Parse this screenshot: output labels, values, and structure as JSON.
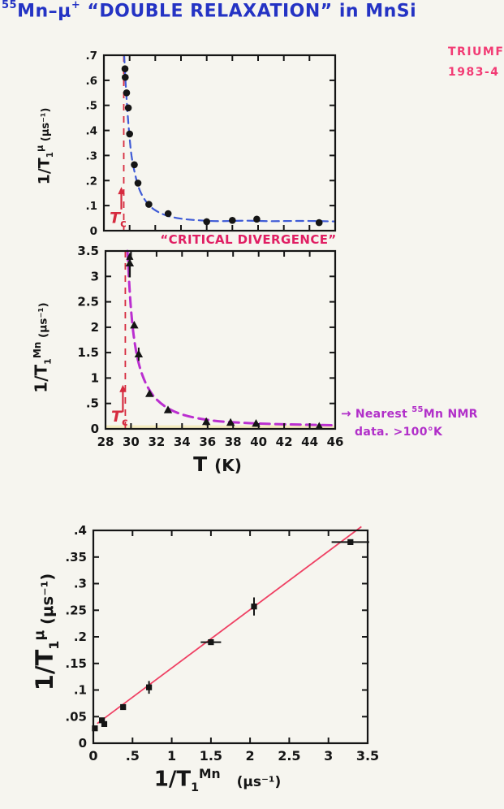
{
  "title": {
    "sup1": "55",
    "seg1": "Mn–μ",
    "sup2": "+",
    "seg2": " “DOUBLE RELAXATION” in MnSi"
  },
  "stamp": {
    "line1": "TRIUMF",
    "line2": "1983-4"
  },
  "caption": {
    "text": "“CRITICAL DIVERGENCE”"
  },
  "annotation": {
    "arrow": "→",
    "line1_pre": "Nearest ",
    "line1_sup": "55",
    "line1_post": "Mn NMR",
    "line2": "data. >100°K"
  },
  "axis_labels": {
    "c1y": {
      "pre": "1/T",
      "sub": "1",
      "sup": "μ",
      "units": "(μs⁻¹)"
    },
    "c2y": {
      "pre": "1/T",
      "sub": "1",
      "sup": "Mn",
      "units": "(μs⁻¹)"
    },
    "c2x": {
      "pre": "T",
      "units": "(K)"
    },
    "c3y": {
      "pre": "1/T",
      "sub": "1",
      "sup": "μ",
      "units": "(μs⁻¹)"
    },
    "c3x": {
      "pre": "1/T",
      "sub": "1",
      "sup": "Mn",
      "units": "(μs⁻¹)"
    }
  },
  "colors": {
    "title": "#2433c4",
    "stamp": "#f23b74",
    "caption": "#e01f63",
    "annotation": "#b12fc9",
    "tc": "#d62b3f",
    "ink": "#151515",
    "paper": "#f6f5ef",
    "highlight": "#f0e07a"
  },
  "chart_data": [
    {
      "id": "muon-relaxation-vs-temperature",
      "type": "scatter",
      "marker": "circle",
      "xlabel": "T (K)",
      "ylabel": "1/T1^μ (μs⁻¹)",
      "xlim": [
        28,
        46
      ],
      "ylim": [
        0,
        0.7
      ],
      "xticks": [
        28,
        30,
        32,
        34,
        36,
        38,
        40,
        42,
        44,
        46
      ],
      "xtick_labels": null,
      "yticks": [
        0,
        0.1,
        0.2,
        0.3,
        0.4,
        0.5,
        0.6,
        0.7
      ],
      "ytick_labels": [
        "0",
        ".1",
        ".2",
        ".3",
        ".4",
        ".5",
        ".6",
        ".7"
      ],
      "tc": {
        "x": 29.55,
        "label_main": "T",
        "label_sub": "c"
      },
      "curve_color": "#3f5bd6",
      "curve": [
        [
          29.58,
          0.7
        ],
        [
          29.68,
          0.6
        ],
        [
          29.8,
          0.5
        ],
        [
          29.95,
          0.4
        ],
        [
          30.15,
          0.3
        ],
        [
          30.45,
          0.22
        ],
        [
          30.8,
          0.16
        ],
        [
          31.3,
          0.115
        ],
        [
          31.9,
          0.085
        ],
        [
          32.8,
          0.062
        ],
        [
          34.0,
          0.048
        ],
        [
          35.5,
          0.041
        ],
        [
          37.0,
          0.038
        ],
        [
          39.0,
          0.04
        ],
        [
          41.0,
          0.038
        ],
        [
          43.5,
          0.039
        ],
        [
          46.0,
          0.037
        ]
      ],
      "points": [
        [
          29.64,
          0.646
        ],
        [
          29.66,
          0.612
        ],
        [
          29.77,
          0.55
        ],
        [
          29.9,
          0.49
        ],
        [
          30.0,
          0.386
        ],
        [
          30.37,
          0.263
        ],
        [
          30.65,
          0.19
        ],
        [
          31.5,
          0.105
        ],
        [
          33.0,
          0.068
        ],
        [
          36.0,
          0.036
        ],
        [
          38.0,
          0.041
        ],
        [
          39.9,
          0.046
        ],
        [
          44.75,
          0.032
        ]
      ]
    },
    {
      "id": "mn-nmr-relaxation-vs-temperature",
      "type": "scatter",
      "marker": "triangle",
      "xlabel": "T (K)",
      "ylabel": "1/T1^Mn (μs⁻¹)",
      "xlim": [
        28,
        46
      ],
      "ylim": [
        0,
        3.5
      ],
      "xticks": [
        28,
        30,
        32,
        34,
        36,
        38,
        40,
        42,
        44,
        46
      ],
      "xtick_labels": [
        "28",
        "30",
        "32",
        "34",
        "36",
        "38",
        "40",
        "42",
        "44",
        "46"
      ],
      "yticks": [
        0,
        0.5,
        1,
        1.5,
        2,
        2.5,
        3,
        3.5
      ],
      "ytick_labels": [
        "0",
        ".5",
        "1",
        "1.5",
        "2",
        "2.5",
        "3",
        "3.5"
      ],
      "tc": {
        "x": 29.55,
        "label_main": "T",
        "label_sub": "c"
      },
      "curve_color": "#bb2fd0",
      "highlight_band": {
        "y_top": 0.07
      },
      "curve": [
        [
          29.72,
          3.5
        ],
        [
          29.85,
          2.9
        ],
        [
          30.0,
          2.35
        ],
        [
          30.2,
          1.85
        ],
        [
          30.5,
          1.4
        ],
        [
          30.9,
          1.05
        ],
        [
          31.4,
          0.78
        ],
        [
          32.0,
          0.58
        ],
        [
          32.8,
          0.42
        ],
        [
          33.8,
          0.3
        ],
        [
          35.0,
          0.22
        ],
        [
          36.5,
          0.16
        ],
        [
          38.0,
          0.13
        ],
        [
          40.0,
          0.105
        ],
        [
          42.0,
          0.09
        ],
        [
          44.0,
          0.08
        ],
        [
          46.0,
          0.07
        ]
      ],
      "points": [
        [
          29.9,
          3.26
        ],
        [
          30.25,
          2.04
        ],
        [
          30.6,
          1.47
        ],
        [
          31.45,
          0.69
        ],
        [
          32.9,
          0.37
        ],
        [
          35.9,
          0.14
        ],
        [
          37.8,
          0.125
        ],
        [
          39.8,
          0.105
        ],
        [
          44.75,
          0.05
        ]
      ],
      "error_bars": [
        {
          "x": 30.6,
          "y": 1.47,
          "ey": 0.13
        },
        {
          "x": 35.9,
          "y": 0.14,
          "ey": 0.07
        },
        {
          "x": 37.8,
          "y": 0.125,
          "ey": 0.06
        },
        {
          "x": 39.8,
          "y": 0.105,
          "ey": 0.06
        }
      ],
      "up_arrow": {
        "x": 29.9,
        "y1": 2.98,
        "y2": 3.47
      }
    },
    {
      "id": "muon-rate-vs-mn-rate-correlation",
      "type": "scatter",
      "marker": "square",
      "xlabel": "1/T1^Mn (μs⁻¹)",
      "ylabel": "1/T1^μ (μs⁻¹)",
      "xlim": [
        0,
        3.5
      ],
      "ylim": [
        0,
        0.4
      ],
      "xticks": [
        0,
        0.5,
        1,
        1.5,
        2,
        2.5,
        3,
        3.5
      ],
      "xtick_labels": [
        "0",
        ".5",
        "1",
        "1.5",
        "2",
        "2.5",
        "3",
        "3.5"
      ],
      "yticks": [
        0,
        0.05,
        0.1,
        0.15,
        0.2,
        0.25,
        0.3,
        0.35,
        0.4
      ],
      "ytick_labels": [
        "0",
        ".05",
        ".1",
        ".15",
        ".2",
        ".25",
        ".3",
        ".35",
        ".4"
      ],
      "line_color": "#ef4063",
      "fit_line": {
        "x1": 0.05,
        "y1": 0.037,
        "x2": 3.42,
        "y2": 0.407
      },
      "points": [
        [
          0.02,
          0.028
        ],
        [
          0.11,
          0.043
        ],
        [
          0.14,
          0.036
        ],
        [
          0.38,
          0.068
        ],
        [
          0.71,
          0.105
        ],
        [
          1.5,
          0.19
        ],
        [
          2.05,
          0.257
        ],
        [
          3.28,
          0.378
        ]
      ],
      "error_bars": [
        {
          "x": 0.71,
          "y": 0.105,
          "ey": 0.012
        },
        {
          "x": 1.5,
          "y": 0.19,
          "ex": 0.13
        },
        {
          "x": 2.05,
          "y": 0.257,
          "ey": 0.017
        },
        {
          "x": 3.28,
          "y": 0.378,
          "ex": 0.24
        }
      ]
    }
  ]
}
